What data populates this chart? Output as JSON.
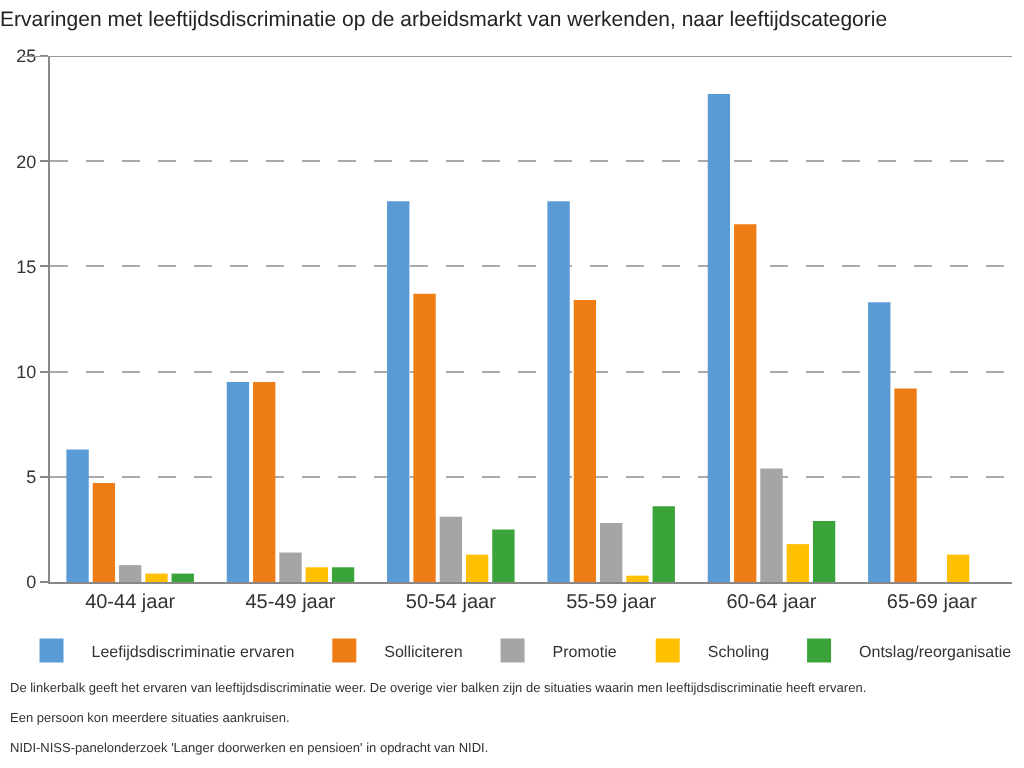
{
  "chart_data": {
    "type": "bar",
    "title": "Ervaringen met leeftijdsdiscriminatie op de arbeidsmarkt van werkenden, naar leeftijdscategorie",
    "categories": [
      "40-44 jaar",
      "45-49 jaar",
      "50-54 jaar",
      "55-59 jaar",
      "60-64 jaar",
      "65-69 jaar"
    ],
    "series": [
      {
        "name": "Leefijdsdiscriminatie ervaren",
        "color": "#5b9bd5",
        "values": [
          6.3,
          9.5,
          18.1,
          18.1,
          23.2,
          13.3
        ]
      },
      {
        "name": "Solliciteren",
        "color": "#ed7d14",
        "values": [
          4.7,
          9.5,
          13.7,
          13.4,
          17.0,
          9.2
        ]
      },
      {
        "name": "Promotie",
        "color": "#a5a5a5",
        "values": [
          0.8,
          1.4,
          3.1,
          2.8,
          5.4,
          null
        ]
      },
      {
        "name": "Scholing",
        "color": "#ffc000",
        "values": [
          0.4,
          0.7,
          1.3,
          0.3,
          1.8,
          1.3
        ]
      },
      {
        "name": "Ontslag/reorganisatie",
        "color": "#3aa43a",
        "values": [
          0.4,
          0.7,
          2.5,
          3.6,
          2.9,
          null
        ]
      }
    ],
    "ylim": [
      0,
      25
    ],
    "yticks": [
      0,
      5,
      10,
      15,
      20,
      25
    ],
    "grid": "y",
    "legend": "bottom",
    "annotations": [
      "De linkerbalk geeft het ervaren van leeftijdsdiscriminatie weer. De overige vier balken zijn de situaties waarin men leeftijdsdiscriminatie heeft ervaren.",
      "Een persoon kon meerdere situaties aankruisen.",
      "NIDI-NISS-panelonderzoek 'Langer doorwerken en pensioen' in opdracht van NIDI."
    ]
  }
}
